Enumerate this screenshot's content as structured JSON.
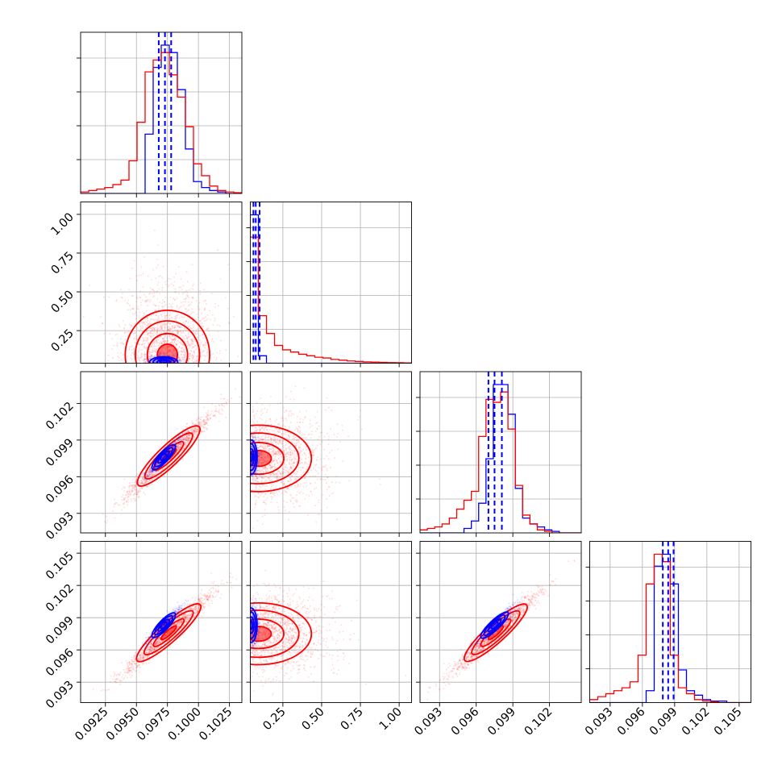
{
  "chart_data": {
    "type": "corner",
    "grid": true,
    "series": [
      {
        "color": "#0000ff"
      },
      {
        "color": "#ff0000"
      }
    ],
    "params": [
      {
        "ticks": [
          "0.0925",
          "0.0950",
          "0.0975",
          "0.1000",
          "0.1025"
        ],
        "tick_values": [
          0.0925,
          0.095,
          0.0975,
          0.1,
          0.1025
        ],
        "range": [
          0.0905,
          0.1035
        ]
      },
      {
        "ticks": [
          "0.25",
          "0.50",
          "0.75",
          "1.00"
        ],
        "tick_values": [
          0.25,
          0.5,
          0.75,
          1.0
        ],
        "range": [
          0.04,
          1.08
        ]
      },
      {
        "ticks": [
          "0.093",
          "0.096",
          "0.099",
          "0.102"
        ],
        "tick_values": [
          0.093,
          0.096,
          0.099,
          0.102
        ],
        "range": [
          0.0914,
          0.1046
        ]
      },
      {
        "ticks": [
          "0.093",
          "0.096",
          "0.099",
          "0.102",
          "0.105"
        ],
        "tick_values": [
          0.093,
          0.096,
          0.099,
          0.102,
          0.105
        ],
        "range": [
          0.0911,
          0.1061
        ]
      }
    ],
    "diagonal": [
      {
        "bin_edges": [
          0.0905,
          0.09115,
          0.0918,
          0.09245,
          0.0931,
          0.09375,
          0.0944,
          0.09505,
          0.0957,
          0.09635,
          0.097,
          0.09765,
          0.0983,
          0.09895,
          0.0996,
          0.10025,
          0.1009,
          0.10155,
          0.1022,
          0.10285,
          0.1035
        ],
        "counts": {
          "blue": [
            0,
            0,
            0,
            0,
            0,
            0,
            0,
            0,
            0.4,
            0.85,
            1.0,
            0.95,
            0.7,
            0.3,
            0.08,
            0.04,
            0.02,
            0.01,
            0,
            0
          ],
          "red": [
            0.01,
            0.02,
            0.03,
            0.04,
            0.06,
            0.09,
            0.22,
            0.48,
            0.82,
            0.9,
            0.95,
            0.8,
            0.65,
            0.45,
            0.2,
            0.12,
            0.05,
            0.02,
            0.01,
            0.005
          ]
        },
        "quantiles": [
          0.0968,
          0.0973,
          0.0978
        ]
      },
      {
        "bin_edges": [
          0.04,
          0.092,
          0.144,
          0.196,
          0.248,
          0.3,
          0.352,
          0.404,
          0.456,
          0.508,
          0.56,
          0.612,
          0.664,
          0.716,
          0.768,
          0.82,
          0.872,
          0.924,
          0.976,
          1.028,
          1.08
        ],
        "counts": {
          "blue": [
            1.0,
            0.05,
            0,
            0,
            0,
            0,
            0,
            0,
            0,
            0,
            0,
            0,
            0,
            0,
            0,
            0,
            0,
            0,
            0,
            0
          ],
          "red": [
            0.85,
            0.32,
            0.2,
            0.12,
            0.09,
            0.075,
            0.06,
            0.05,
            0.04,
            0.035,
            0.025,
            0.02,
            0.015,
            0.012,
            0.009,
            0.007,
            0.005,
            0.004,
            0.003,
            0.002
          ]
        },
        "quantiles": [
          0.06,
          0.075,
          0.1
        ]
      },
      {
        "bin_edges": [
          0.0914,
          0.092,
          0.0926,
          0.0932,
          0.0938,
          0.0944,
          0.095,
          0.0956,
          0.0962,
          0.0968,
          0.0974,
          0.098,
          0.0986,
          0.0992,
          0.0998,
          0.1004,
          0.101,
          0.1016,
          0.1022,
          0.1028,
          0.1034,
          0.104,
          0.1046
        ],
        "counts": {
          "blue": [
            0,
            0,
            0,
            0,
            0,
            0,
            0.03,
            0.08,
            0.2,
            0.5,
            1.0,
            1.0,
            0.8,
            0.3,
            0.1,
            0.06,
            0.04,
            0.02,
            0.01,
            0,
            0,
            0
          ],
          "red": [
            0.02,
            0.03,
            0.04,
            0.06,
            0.1,
            0.16,
            0.22,
            0.28,
            0.65,
            0.9,
            0.88,
            0.95,
            0.7,
            0.32,
            0.12,
            0.06,
            0.02,
            0.01,
            0,
            0,
            0,
            0
          ]
        },
        "quantiles": [
          0.097,
          0.0975,
          0.0981
        ]
      },
      {
        "bin_edges": [
          0.0911,
          0.09185,
          0.0926,
          0.09335,
          0.0941,
          0.09485,
          0.0956,
          0.09635,
          0.0971,
          0.09785,
          0.0986,
          0.09935,
          0.1001,
          0.10085,
          0.1016,
          0.10235,
          0.1031,
          0.10385,
          0.1046,
          0.10535,
          0.1061
        ],
        "counts": {
          "blue": [
            0,
            0,
            0,
            0,
            0,
            0,
            0,
            0.08,
            0.92,
            1.0,
            0.8,
            0.22,
            0.08,
            0.05,
            0.02,
            0.01,
            0.01,
            0,
            0,
            0
          ],
          "red": [
            0.02,
            0.04,
            0.06,
            0.08,
            0.1,
            0.14,
            0.32,
            0.8,
            1.0,
            0.95,
            0.32,
            0.1,
            0.06,
            0.02,
            0.01,
            0.005,
            0,
            0,
            0,
            0
          ]
        },
        "quantiles": [
          0.0979,
          0.0984,
          0.0989
        ]
      }
    ],
    "correlation_panels": [
      {
        "row": 1,
        "col": 0,
        "blue": {
          "center": [
            0.0972,
            0.075
          ],
          "spread": [
            0.0006,
            0.02
          ],
          "rho": -0.2
        },
        "red": {
          "center": [
            0.0975,
            0.15
          ],
          "spread": [
            0.0018,
            0.18
          ],
          "rho": -0.3
        }
      },
      {
        "row": 2,
        "col": 0,
        "blue": {
          "center": [
            0.0972,
            0.0976
          ],
          "spread": [
            0.0007,
            0.0008
          ],
          "rho": 0.95
        },
        "red": {
          "center": [
            0.0976,
            0.0977
          ],
          "spread": [
            0.0018,
            0.0018
          ],
          "rho": 0.97
        }
      },
      {
        "row": 2,
        "col": 1,
        "blue": {
          "center": [
            0.075,
            0.0976
          ],
          "spread": [
            0.02,
            0.0008
          ],
          "rho": 0.2
        },
        "red": {
          "center": [
            0.15,
            0.0975
          ],
          "spread": [
            0.18,
            0.0018
          ],
          "rho": -0.35
        }
      },
      {
        "row": 3,
        "col": 0,
        "blue": {
          "center": [
            0.0972,
            0.0983
          ],
          "spread": [
            0.0007,
            0.0009
          ],
          "rho": 0.95
        },
        "red": {
          "center": [
            0.0976,
            0.0976
          ],
          "spread": [
            0.0018,
            0.0019
          ],
          "rho": 0.97
        }
      },
      {
        "row": 3,
        "col": 1,
        "blue": {
          "center": [
            0.075,
            0.0983
          ],
          "spread": [
            0.02,
            0.0009
          ],
          "rho": 0.2
        },
        "red": {
          "center": [
            0.15,
            0.0975
          ],
          "spread": [
            0.18,
            0.0018
          ],
          "rho": -0.3
        }
      },
      {
        "row": 3,
        "col": 2,
        "blue": {
          "center": [
            0.0975,
            0.0983
          ],
          "spread": [
            0.0008,
            0.0009
          ],
          "rho": 0.95
        },
        "red": {
          "center": [
            0.0976,
            0.0976
          ],
          "spread": [
            0.0018,
            0.0019
          ],
          "rho": 0.97
        }
      }
    ]
  }
}
